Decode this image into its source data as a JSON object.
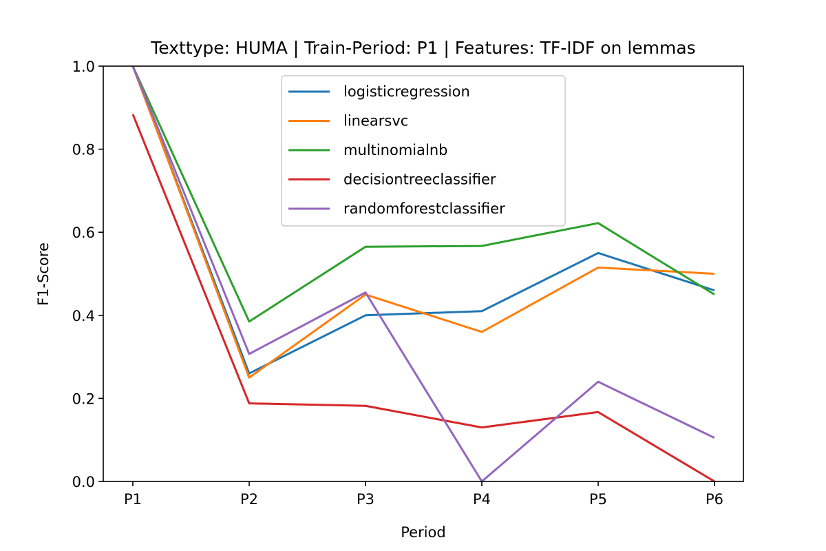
{
  "chart_data": {
    "type": "line",
    "title": "Texttype: HUMA | Train-Period: P1 | Features: TF-IDF on lemmas",
    "xlabel": "Period",
    "ylabel": "F1-Score",
    "categories": [
      "P1",
      "P2",
      "P3",
      "P4",
      "P5",
      "P6"
    ],
    "ylim": [
      0,
      1
    ],
    "yticks": [
      "0.0",
      "0.2",
      "0.4",
      "0.6",
      "0.8",
      "1.0"
    ],
    "grid": false,
    "legend_position": "upper-center",
    "series": [
      {
        "name": "logisticregression",
        "color": "#1f77b4",
        "values": [
          1.0,
          0.26,
          0.4,
          0.41,
          0.55,
          0.46
        ]
      },
      {
        "name": "linearsvc",
        "color": "#ff7f0e",
        "values": [
          1.0,
          0.25,
          0.45,
          0.36,
          0.515,
          0.5
        ]
      },
      {
        "name": "multinomialnb",
        "color": "#2ca02c",
        "values": [
          1.0,
          0.385,
          0.565,
          0.567,
          0.622,
          0.45
        ]
      },
      {
        "name": "decisiontreeclassifier",
        "color": "#d62728",
        "values": [
          0.884,
          0.188,
          0.182,
          0.13,
          0.167,
          0.0
        ]
      },
      {
        "name": "randomforestclassifier",
        "color": "#9467bd",
        "values": [
          1.0,
          0.307,
          0.455,
          0.0,
          0.24,
          0.105
        ]
      }
    ]
  }
}
